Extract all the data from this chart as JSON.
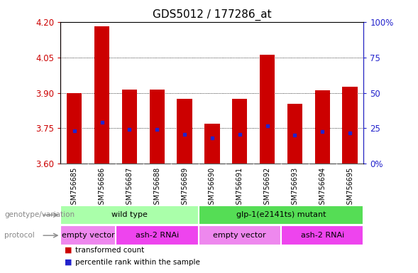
{
  "title": "GDS5012 / 177286_at",
  "samples": [
    "GSM756685",
    "GSM756686",
    "GSM756687",
    "GSM756688",
    "GSM756689",
    "GSM756690",
    "GSM756691",
    "GSM756692",
    "GSM756693",
    "GSM756694",
    "GSM756695"
  ],
  "bar_tops": [
    3.9,
    4.18,
    3.915,
    3.915,
    3.875,
    3.77,
    3.875,
    4.06,
    3.855,
    3.91,
    3.925
  ],
  "blue_marks": [
    3.74,
    3.775,
    3.745,
    3.745,
    3.725,
    3.71,
    3.725,
    3.76,
    3.72,
    3.735,
    3.73
  ],
  "bar_bottom": 3.6,
  "ylim_left": [
    3.6,
    4.2
  ],
  "ylim_right": [
    0,
    100
  ],
  "yticks_left": [
    3.6,
    3.75,
    3.9,
    4.05,
    4.2
  ],
  "yticks_right": [
    0,
    25,
    50,
    75,
    100
  ],
  "ytick_labels_right": [
    "0%",
    "25",
    "50",
    "75",
    "100%"
  ],
  "bar_color": "#cc0000",
  "blue_color": "#2222cc",
  "genotype_groups": [
    {
      "label": "wild type",
      "start": 0,
      "end": 5,
      "color": "#aaffaa"
    },
    {
      "label": "glp-1(e2141ts) mutant",
      "start": 5,
      "end": 11,
      "color": "#55dd55"
    }
  ],
  "protocol_groups": [
    {
      "label": "empty vector",
      "start": 0,
      "end": 2,
      "color": "#ee88ee"
    },
    {
      "label": "ash-2 RNAi",
      "start": 2,
      "end": 5,
      "color": "#ee44ee"
    },
    {
      "label": "empty vector",
      "start": 5,
      "end": 8,
      "color": "#ee88ee"
    },
    {
      "label": "ash-2 RNAi",
      "start": 8,
      "end": 11,
      "color": "#ee44ee"
    }
  ],
  "legend_items": [
    {
      "label": "transformed count",
      "color": "#cc0000"
    },
    {
      "label": "percentile rank within the sample",
      "color": "#2222cc"
    }
  ],
  "left_labels": [
    "genotype/variation",
    "protocol"
  ],
  "background_color": "#ffffff",
  "title_fontsize": 11,
  "tick_fontsize": 8.5,
  "xtick_fontsize": 7,
  "annot_fontsize": 8,
  "xticklabel_bg": "#cccccc"
}
